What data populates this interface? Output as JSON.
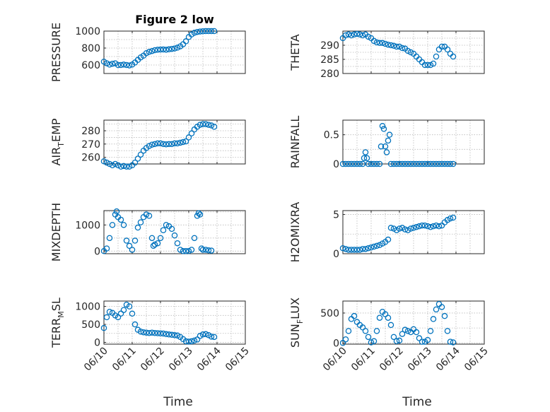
{
  "chart_data": [
    {
      "type": "scatter",
      "ylabel_main": "PRESSURE",
      "ylabel_sub": "",
      "ylabel_tail": "",
      "title": "Figure 2 low",
      "ylim": [
        500,
        1000
      ],
      "yticks": [
        "600",
        "800",
        "1000"
      ],
      "xlabel": "",
      "xticklabels": [],
      "grid": true,
      "x": [
        0.0,
        0.1,
        0.2,
        0.3,
        0.4,
        0.5,
        0.6,
        0.7,
        0.8,
        0.9,
        1.0,
        1.1,
        1.2,
        1.3,
        1.4,
        1.5,
        1.6,
        1.7,
        1.8,
        1.9,
        2.0,
        2.1,
        2.2,
        2.3,
        2.4,
        2.5,
        2.6,
        2.7,
        2.8,
        2.9,
        3.0,
        3.1,
        3.2,
        3.3,
        3.4,
        3.5,
        3.6,
        3.7,
        3.8,
        3.9
      ],
      "y": [
        640,
        620,
        605,
        615,
        620,
        600,
        600,
        605,
        600,
        595,
        605,
        630,
        660,
        690,
        710,
        740,
        755,
        765,
        775,
        780,
        782,
        783,
        780,
        785,
        790,
        795,
        805,
        820,
        845,
        880,
        930,
        960,
        980,
        990,
        995,
        998,
        1000,
        1000,
        1000,
        1000
      ]
    },
    {
      "type": "scatter",
      "ylabel_main": "THETA",
      "ylabel_sub": "",
      "ylabel_tail": "",
      "title": "",
      "ylim": [
        280,
        295
      ],
      "yticks": [
        "280",
        "285",
        "290"
      ],
      "xlabel": "",
      "xticklabels": [],
      "grid": true,
      "x": [
        0.0,
        0.1,
        0.2,
        0.3,
        0.4,
        0.5,
        0.6,
        0.7,
        0.8,
        0.9,
        1.0,
        1.1,
        1.2,
        1.3,
        1.4,
        1.5,
        1.6,
        1.7,
        1.8,
        1.9,
        2.0,
        2.1,
        2.2,
        2.3,
        2.4,
        2.5,
        2.6,
        2.7,
        2.8,
        2.9,
        3.0,
        3.1,
        3.2,
        3.3,
        3.4,
        3.5,
        3.6,
        3.7,
        3.8,
        3.9
      ],
      "y": [
        292.5,
        293.5,
        293.8,
        293.5,
        293.8,
        294,
        293.8,
        293.5,
        293.8,
        293,
        292.5,
        291.5,
        291,
        290.8,
        290.8,
        290.5,
        290.2,
        290,
        289.8,
        289.5,
        289.5,
        289,
        288.8,
        288,
        287.5,
        287,
        286,
        285,
        284,
        283,
        283,
        283,
        283.5,
        286,
        288.5,
        289.5,
        289.5,
        288.5,
        287,
        286
      ]
    },
    {
      "type": "scatter",
      "ylabel_main": "AIR",
      "ylabel_sub": "T",
      "ylabel_tail": "EMP",
      "title": "",
      "ylim": [
        255,
        288
      ],
      "yticks": [
        "260",
        "270",
        "280"
      ],
      "xlabel": "",
      "xticklabels": [],
      "grid": true,
      "x": [
        0.0,
        0.1,
        0.2,
        0.3,
        0.4,
        0.5,
        0.6,
        0.7,
        0.8,
        0.9,
        1.0,
        1.1,
        1.2,
        1.3,
        1.4,
        1.5,
        1.6,
        1.7,
        1.8,
        1.9,
        2.0,
        2.1,
        2.2,
        2.3,
        2.4,
        2.5,
        2.6,
        2.7,
        2.8,
        2.9,
        3.0,
        3.1,
        3.2,
        3.3,
        3.4,
        3.5,
        3.6,
        3.7,
        3.8,
        3.9
      ],
      "y": [
        257,
        256,
        255,
        254,
        255,
        254,
        253,
        253.5,
        253,
        253,
        254,
        256,
        259,
        262,
        265,
        267,
        268.5,
        269.5,
        270,
        270.5,
        270.5,
        270,
        269.8,
        270,
        270,
        270.5,
        270.5,
        271,
        271.5,
        272,
        275,
        278,
        281,
        283,
        284.5,
        285,
        285,
        284.5,
        284,
        283
      ]
    },
    {
      "type": "scatter",
      "ylabel_main": "RAINFALL",
      "ylabel_sub": "",
      "ylabel_tail": "",
      "title": "",
      "ylim": [
        0,
        0.75
      ],
      "yticks": [
        "0",
        "0.5"
      ],
      "xlabel": "",
      "xticklabels": [],
      "grid": true,
      "x": [
        0.0,
        0.1,
        0.2,
        0.3,
        0.4,
        0.5,
        0.6,
        0.7,
        0.75,
        0.8,
        0.85,
        0.9,
        1.0,
        1.1,
        1.2,
        1.3,
        1.35,
        1.4,
        1.45,
        1.5,
        1.55,
        1.6,
        1.65,
        1.7,
        1.8,
        1.9,
        2.0,
        2.1,
        2.2,
        2.3,
        2.4,
        2.5,
        2.6,
        2.7,
        2.8,
        2.9,
        3.0,
        3.1,
        3.2,
        3.3,
        3.4,
        3.5,
        3.6,
        3.7,
        3.8,
        3.9
      ],
      "y": [
        0,
        0,
        0,
        0,
        0,
        0,
        0,
        0,
        0.1,
        0.2,
        0.1,
        0,
        0,
        0,
        0,
        0,
        0.3,
        0.65,
        0.6,
        0.3,
        0.2,
        0.4,
        0.5,
        0,
        0,
        0,
        0,
        0,
        0,
        0,
        0,
        0,
        0,
        0,
        0,
        0,
        0,
        0,
        0,
        0,
        0,
        0,
        0,
        0,
        0,
        0
      ]
    },
    {
      "type": "scatter",
      "ylabel_main": "MIXDEPTH",
      "ylabel_sub": "",
      "ylabel_tail": "",
      "title": "",
      "ylim": [
        -100,
        1550
      ],
      "yticks": [
        "0",
        "1000"
      ],
      "xlabel": "",
      "xticklabels": [],
      "grid": true,
      "x": [
        0.0,
        0.1,
        0.2,
        0.3,
        0.4,
        0.45,
        0.5,
        0.6,
        0.7,
        0.8,
        0.9,
        1.0,
        1.1,
        1.2,
        1.3,
        1.4,
        1.5,
        1.6,
        1.7,
        1.75,
        1.8,
        1.9,
        2.0,
        2.1,
        2.2,
        2.3,
        2.4,
        2.5,
        2.6,
        2.7,
        2.8,
        2.9,
        3.0,
        3.1,
        3.2,
        3.3,
        3.35,
        3.4,
        3.45,
        3.5,
        3.6,
        3.7,
        3.8
      ],
      "y": [
        0,
        100,
        500,
        1000,
        1400,
        1520,
        1300,
        1200,
        1000,
        400,
        200,
        50,
        400,
        900,
        1100,
        1300,
        1400,
        1350,
        500,
        200,
        250,
        300,
        500,
        800,
        1000,
        950,
        850,
        600,
        300,
        50,
        0,
        0,
        0,
        50,
        500,
        1350,
        1450,
        1400,
        100,
        50,
        50,
        30,
        20
      ]
    },
    {
      "type": "scatter",
      "ylabel_main": "H2OMIXRA",
      "ylabel_sub": "",
      "ylabel_tail": "",
      "title": "",
      "ylim": [
        0,
        5.5
      ],
      "yticks": [
        "0",
        "5"
      ],
      "xlabel": "",
      "xticklabels": [],
      "grid": true,
      "x": [
        0.0,
        0.1,
        0.2,
        0.3,
        0.4,
        0.5,
        0.6,
        0.7,
        0.8,
        0.9,
        1.0,
        1.1,
        1.2,
        1.3,
        1.4,
        1.5,
        1.6,
        1.7,
        1.8,
        1.9,
        2.0,
        2.1,
        2.2,
        2.3,
        2.4,
        2.5,
        2.6,
        2.7,
        2.8,
        2.9,
        3.0,
        3.1,
        3.2,
        3.3,
        3.4,
        3.5,
        3.6,
        3.7,
        3.8,
        3.9
      ],
      "y": [
        0.7,
        0.6,
        0.5,
        0.5,
        0.5,
        0.5,
        0.5,
        0.6,
        0.6,
        0.7,
        0.8,
        0.9,
        1.0,
        1.1,
        1.3,
        1.5,
        1.8,
        3.3,
        3.2,
        3.0,
        3.2,
        3.3,
        3.1,
        3.0,
        3.2,
        3.3,
        3.4,
        3.5,
        3.6,
        3.6,
        3.5,
        3.4,
        3.5,
        3.6,
        3.5,
        3.6,
        4.0,
        4.3,
        4.5,
        4.6
      ]
    },
    {
      "type": "scatter",
      "ylabel_main": "TERR",
      "ylabel_sub": "M",
      "ylabel_tail": "SL",
      "title": "",
      "ylim": [
        -50,
        1150
      ],
      "yticks": [
        "0",
        "500",
        "1000"
      ],
      "xlabel": "Time",
      "xticklabels": [
        "06/10",
        "06/11",
        "06/12",
        "06/13",
        "06/14",
        "06/15"
      ],
      "grid": true,
      "x": [
        0.0,
        0.1,
        0.2,
        0.3,
        0.4,
        0.5,
        0.6,
        0.7,
        0.8,
        0.9,
        1.0,
        1.1,
        1.2,
        1.3,
        1.4,
        1.5,
        1.6,
        1.7,
        1.8,
        1.9,
        2.0,
        2.1,
        2.2,
        2.3,
        2.4,
        2.5,
        2.6,
        2.7,
        2.8,
        2.9,
        3.0,
        3.1,
        3.2,
        3.3,
        3.4,
        3.5,
        3.6,
        3.7,
        3.8,
        3.9
      ],
      "y": [
        400,
        700,
        850,
        820,
        750,
        700,
        800,
        900,
        1050,
        1000,
        800,
        500,
        350,
        300,
        280,
        270,
        260,
        270,
        260,
        255,
        250,
        245,
        230,
        220,
        210,
        200,
        190,
        150,
        90,
        30,
        20,
        30,
        50,
        80,
        180,
        220,
        230,
        200,
        160,
        150
      ]
    },
    {
      "type": "scatter",
      "ylabel_main": "SUN",
      "ylabel_sub": "F",
      "ylabel_tail": "LUX",
      "title": "",
      "ylim": [
        -20,
        700
      ],
      "yticks": [
        "0",
        "500"
      ],
      "xlabel": "Time",
      "xticklabels": [
        "06/10",
        "06/11",
        "06/12",
        "06/13",
        "06/14",
        "06/15"
      ],
      "grid": true,
      "x": [
        0.0,
        0.1,
        0.2,
        0.3,
        0.4,
        0.5,
        0.6,
        0.7,
        0.8,
        0.9,
        1.0,
        1.1,
        1.2,
        1.3,
        1.4,
        1.5,
        1.6,
        1.7,
        1.8,
        1.9,
        2.0,
        2.1,
        2.2,
        2.3,
        2.4,
        2.5,
        2.6,
        2.7,
        2.8,
        2.9,
        3.0,
        3.1,
        3.2,
        3.3,
        3.4,
        3.5,
        3.6,
        3.7,
        3.8,
        3.9
      ],
      "y": [
        0,
        60,
        200,
        400,
        450,
        350,
        300,
        260,
        200,
        100,
        10,
        30,
        200,
        420,
        520,
        480,
        420,
        300,
        100,
        30,
        40,
        150,
        220,
        200,
        180,
        230,
        180,
        80,
        20,
        20,
        50,
        200,
        400,
        560,
        650,
        600,
        450,
        200,
        20,
        10
      ]
    }
  ]
}
